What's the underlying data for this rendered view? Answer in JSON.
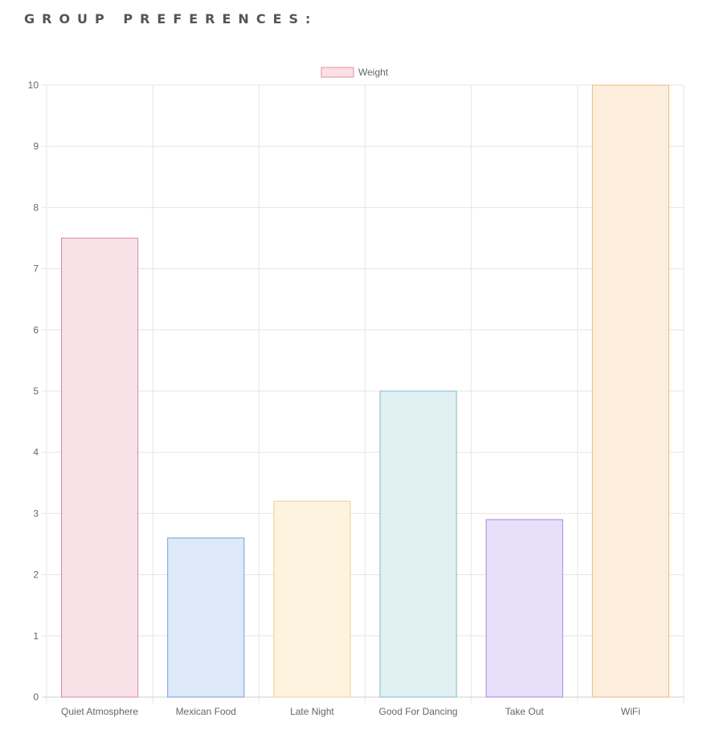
{
  "page": {
    "heading": "GROUP PREFERENCES:"
  },
  "chart_data": {
    "type": "bar",
    "title": "",
    "xlabel": "",
    "ylabel": "",
    "categories": [
      "Quiet Atmosphere",
      "Mexican Food",
      "Late Night",
      "Good For Dancing",
      "Take Out",
      "WiFi"
    ],
    "series": [
      {
        "name": "Weight",
        "values": [
          7.5,
          2.6,
          3.2,
          5.0,
          2.9,
          10.0
        ]
      }
    ],
    "ylim": [
      0,
      10
    ],
    "yticks": [
      0,
      1,
      2,
      3,
      4,
      5,
      6,
      7,
      8,
      9,
      10
    ],
    "grid": true,
    "legend_position": "top-center",
    "colors": {
      "fills": [
        "#f8e1e7",
        "#dde9f9",
        "#fdf3df",
        "#e1f0f1",
        "#e8e0fb",
        "#fdeddd"
      ],
      "borders": [
        "#d98a9f",
        "#6fa2d8",
        "#eed08f",
        "#7fbcc7",
        "#a786d8",
        "#eeb97a"
      ],
      "legend_fill": "#fde0e6",
      "legend_border": "#e3909f",
      "grid": "#e6e6e6",
      "axis_text": "#666666"
    }
  }
}
